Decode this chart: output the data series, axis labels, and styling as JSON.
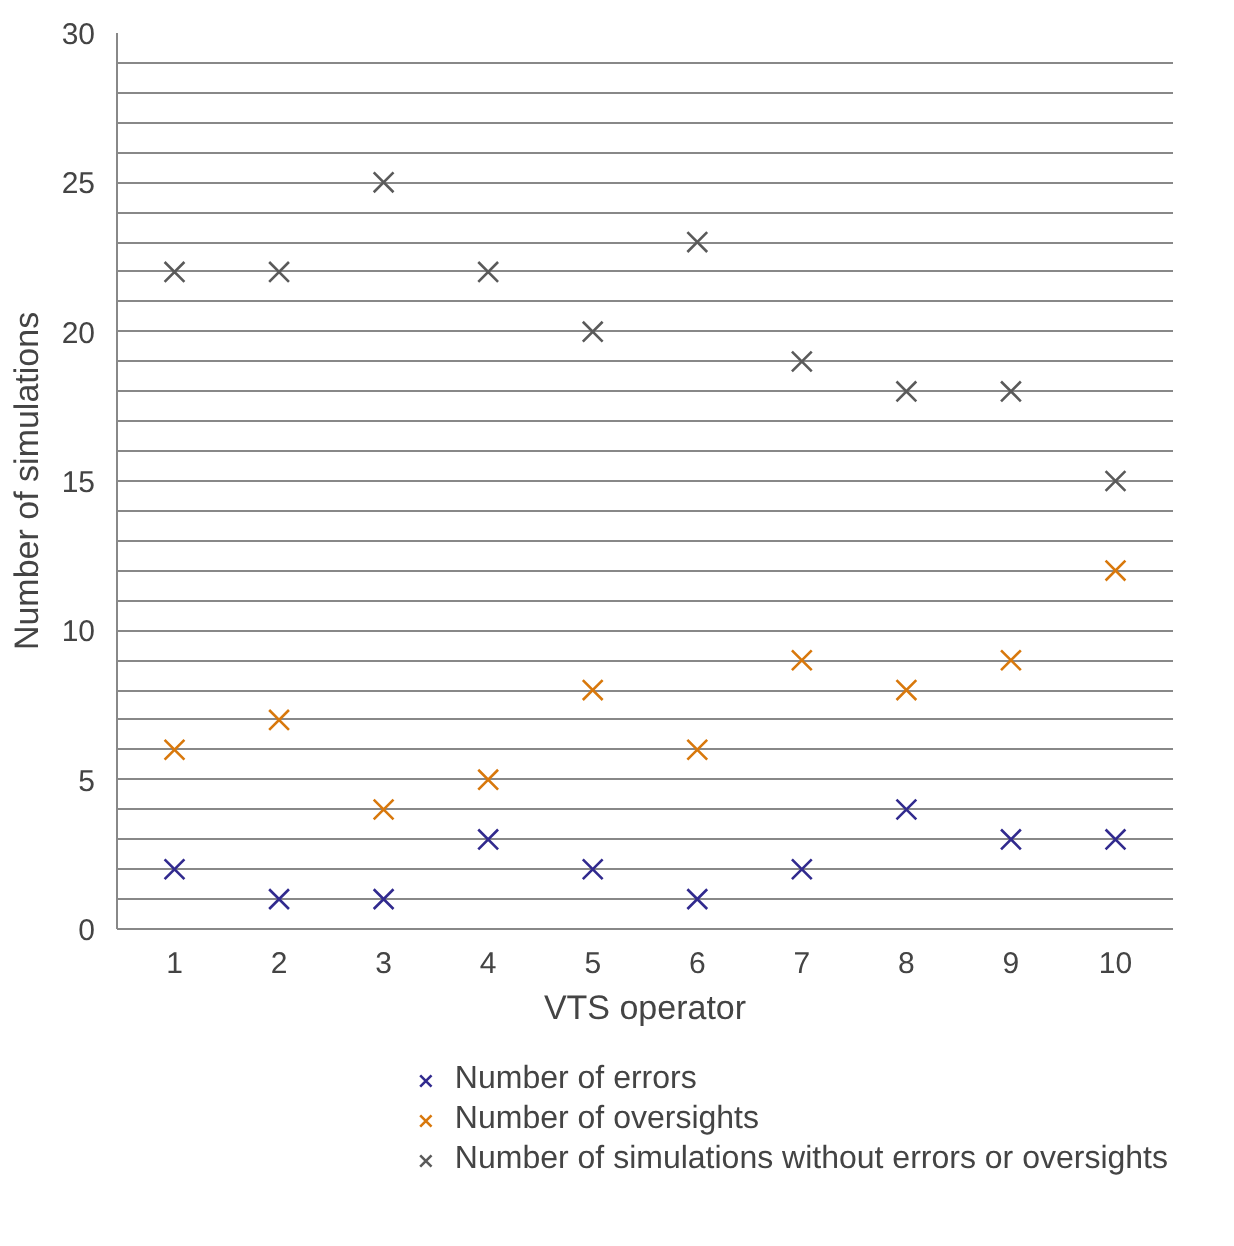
{
  "chart_data": {
    "type": "scatter",
    "xlabel": "VTS operator",
    "ylabel": "Number of simulations",
    "x": [
      1,
      2,
      3,
      4,
      5,
      6,
      7,
      8,
      9,
      10
    ],
    "xlim": [
      0.45,
      10.55
    ],
    "xticks": [
      1,
      2,
      3,
      4,
      5,
      6,
      7,
      8,
      9,
      10
    ],
    "ylim": [
      0,
      30
    ],
    "yticks": [
      0,
      {
        "value": 1,
        "label": null
      },
      {
        "value": 2,
        "label": null
      },
      {
        "value": 3,
        "label": null
      },
      {
        "value": 4,
        "label": null
      },
      5,
      {
        "value": 6,
        "label": null
      },
      {
        "value": 7,
        "label": null
      },
      {
        "value": 8,
        "label": null
      },
      {
        "value": 9,
        "label": null
      },
      10,
      {
        "value": 11,
        "label": null
      },
      {
        "value": 12,
        "label": null
      },
      {
        "value": 13,
        "label": null
      },
      {
        "value": 14,
        "label": null
      },
      15,
      {
        "value": 16,
        "label": null
      },
      {
        "value": 17,
        "label": null
      },
      {
        "value": 18,
        "label": null
      },
      {
        "value": 19,
        "label": null
      },
      20,
      {
        "value": 21,
        "label": null
      },
      {
        "value": 22,
        "label": null
      },
      {
        "value": 23,
        "label": null
      },
      {
        "value": 24,
        "label": null
      },
      25,
      {
        "value": 26,
        "label": null
      },
      {
        "value": 27,
        "label": null
      },
      {
        "value": 28,
        "label": null
      },
      {
        "value": 29,
        "label": null
      },
      30
    ],
    "grid": "y",
    "legend": "bottom",
    "marker": "cross",
    "series": [
      {
        "name": "Number of errors",
        "color": "#312a8e",
        "values": [
          2,
          1,
          1,
          3,
          2,
          1,
          2,
          4,
          3,
          3
        ]
      },
      {
        "name": "Number of oversights",
        "color": "#d8780c",
        "values": [
          6,
          7,
          4,
          5,
          8,
          6,
          9,
          8,
          9,
          12
        ]
      },
      {
        "name": "Number of simulations without errors or oversights",
        "color": "#5a5a5a",
        "values": [
          22,
          22,
          25,
          22,
          20,
          23,
          19,
          18,
          18,
          15
        ]
      }
    ]
  }
}
